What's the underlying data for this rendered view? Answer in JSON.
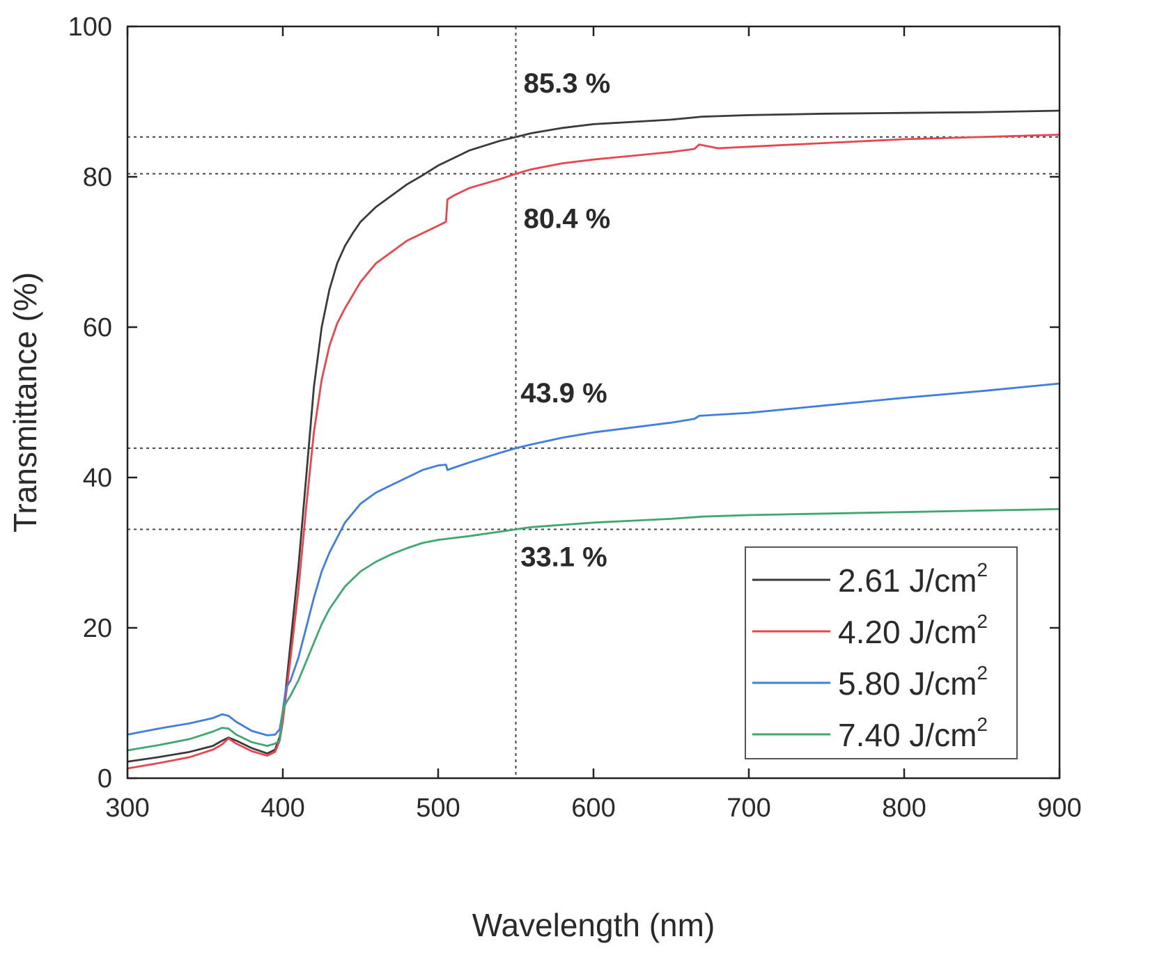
{
  "chart_data": {
    "type": "line",
    "title": "",
    "xlabel": "Wavelength (nm)",
    "ylabel": "Transmittance (%)",
    "xlim": [
      300,
      900
    ],
    "ylim": [
      0,
      100
    ],
    "xticks": [
      300,
      400,
      500,
      600,
      700,
      800,
      900
    ],
    "yticks": [
      0,
      20,
      40,
      60,
      80,
      100
    ],
    "grid": false,
    "legend_position": "bottom-right",
    "unit_sup": "2",
    "reference_lines": {
      "vertical_x": 550,
      "horizontal_y": [
        85.3,
        80.4,
        43.9,
        33.1
      ]
    },
    "annotations": [
      {
        "text": "85.3 %",
        "x": 555,
        "y": 91.2
      },
      {
        "text": "80.4 %",
        "x": 555,
        "y": 73.2
      },
      {
        "text": "43.9 %",
        "x": 553,
        "y": 50.0
      },
      {
        "text": "33.1 %",
        "x": 553,
        "y": 28.2
      }
    ],
    "series": [
      {
        "name": "2.61 J/cm",
        "color": "#3a3a3a",
        "x": [
          300,
          320,
          340,
          355,
          361,
          365,
          370,
          380,
          390,
          395,
          398,
          400,
          402,
          405,
          410,
          415,
          420,
          425,
          430,
          435,
          440,
          445,
          450,
          460,
          470,
          480,
          490,
          500,
          520,
          540,
          550,
          560,
          580,
          600,
          650,
          670,
          700,
          750,
          800,
          850,
          900
        ],
        "y": [
          2.2,
          2.8,
          3.5,
          4.3,
          5.0,
          5.4,
          5.0,
          4.0,
          3.3,
          3.8,
          5.5,
          8.0,
          12.0,
          18.0,
          28.0,
          40.0,
          52.0,
          60.0,
          65.0,
          68.5,
          70.8,
          72.5,
          74.0,
          76.0,
          77.5,
          79.0,
          80.2,
          81.5,
          83.5,
          84.8,
          85.3,
          85.8,
          86.5,
          87.0,
          87.6,
          88.0,
          88.2,
          88.4,
          88.5,
          88.6,
          88.8
        ]
      },
      {
        "name": "4.20 J/cm",
        "color": "#e8464e",
        "x": [
          300,
          320,
          340,
          355,
          361,
          365,
          370,
          380,
          390,
          395,
          398,
          400,
          402,
          405,
          410,
          415,
          420,
          425,
          430,
          435,
          440,
          450,
          460,
          470,
          480,
          490,
          500,
          505,
          506,
          510,
          520,
          540,
          550,
          560,
          580,
          600,
          650,
          665,
          668,
          680,
          700,
          750,
          800,
          850,
          900
        ],
        "y": [
          1.3,
          2.0,
          2.8,
          3.8,
          4.5,
          5.3,
          4.6,
          3.6,
          3.0,
          3.5,
          5.0,
          7.5,
          11.0,
          16.0,
          25.0,
          36.0,
          46.0,
          53.0,
          57.5,
          60.5,
          62.5,
          66.0,
          68.5,
          70.0,
          71.5,
          72.5,
          73.5,
          74.0,
          77.0,
          77.5,
          78.5,
          79.7,
          80.4,
          81.0,
          81.8,
          82.3,
          83.3,
          83.7,
          84.3,
          83.8,
          84.0,
          84.5,
          85.0,
          85.3,
          85.6
        ]
      },
      {
        "name": "5.80 J/cm",
        "color": "#3f7ee0",
        "x": [
          300,
          320,
          340,
          355,
          361,
          365,
          370,
          380,
          390,
          395,
          398,
          400,
          402,
          405,
          410,
          415,
          420,
          425,
          430,
          440,
          450,
          460,
          470,
          480,
          490,
          500,
          505,
          506,
          510,
          520,
          540,
          550,
          560,
          580,
          600,
          650,
          665,
          668,
          700,
          750,
          800,
          850,
          900
        ],
        "y": [
          5.8,
          6.6,
          7.3,
          8.0,
          8.5,
          8.3,
          7.5,
          6.3,
          5.7,
          5.8,
          6.5,
          9.0,
          12.0,
          13.0,
          16.0,
          20.0,
          24.0,
          27.5,
          30.0,
          34.0,
          36.5,
          38.0,
          39.0,
          40.0,
          41.0,
          41.6,
          41.7,
          41.0,
          41.3,
          42.0,
          43.3,
          43.9,
          44.4,
          45.3,
          46.0,
          47.3,
          47.8,
          48.2,
          48.6,
          49.6,
          50.6,
          51.5,
          52.5
        ]
      },
      {
        "name": "7.40 J/cm",
        "color": "#3ea86e",
        "x": [
          300,
          320,
          340,
          355,
          361,
          365,
          370,
          380,
          390,
          395,
          398,
          400,
          402,
          405,
          410,
          415,
          420,
          425,
          430,
          440,
          450,
          460,
          470,
          480,
          490,
          500,
          520,
          540,
          550,
          560,
          580,
          600,
          650,
          670,
          700,
          750,
          800,
          850,
          900
        ],
        "y": [
          3.7,
          4.4,
          5.2,
          6.2,
          6.7,
          6.6,
          5.8,
          4.8,
          4.3,
          4.6,
          5.0,
          9.0,
          10.0,
          11.0,
          13.0,
          15.5,
          18.0,
          20.5,
          22.5,
          25.5,
          27.5,
          28.8,
          29.8,
          30.6,
          31.3,
          31.7,
          32.2,
          32.8,
          33.1,
          33.4,
          33.7,
          34.0,
          34.5,
          34.8,
          35.0,
          35.2,
          35.4,
          35.6,
          35.8
        ]
      }
    ]
  }
}
